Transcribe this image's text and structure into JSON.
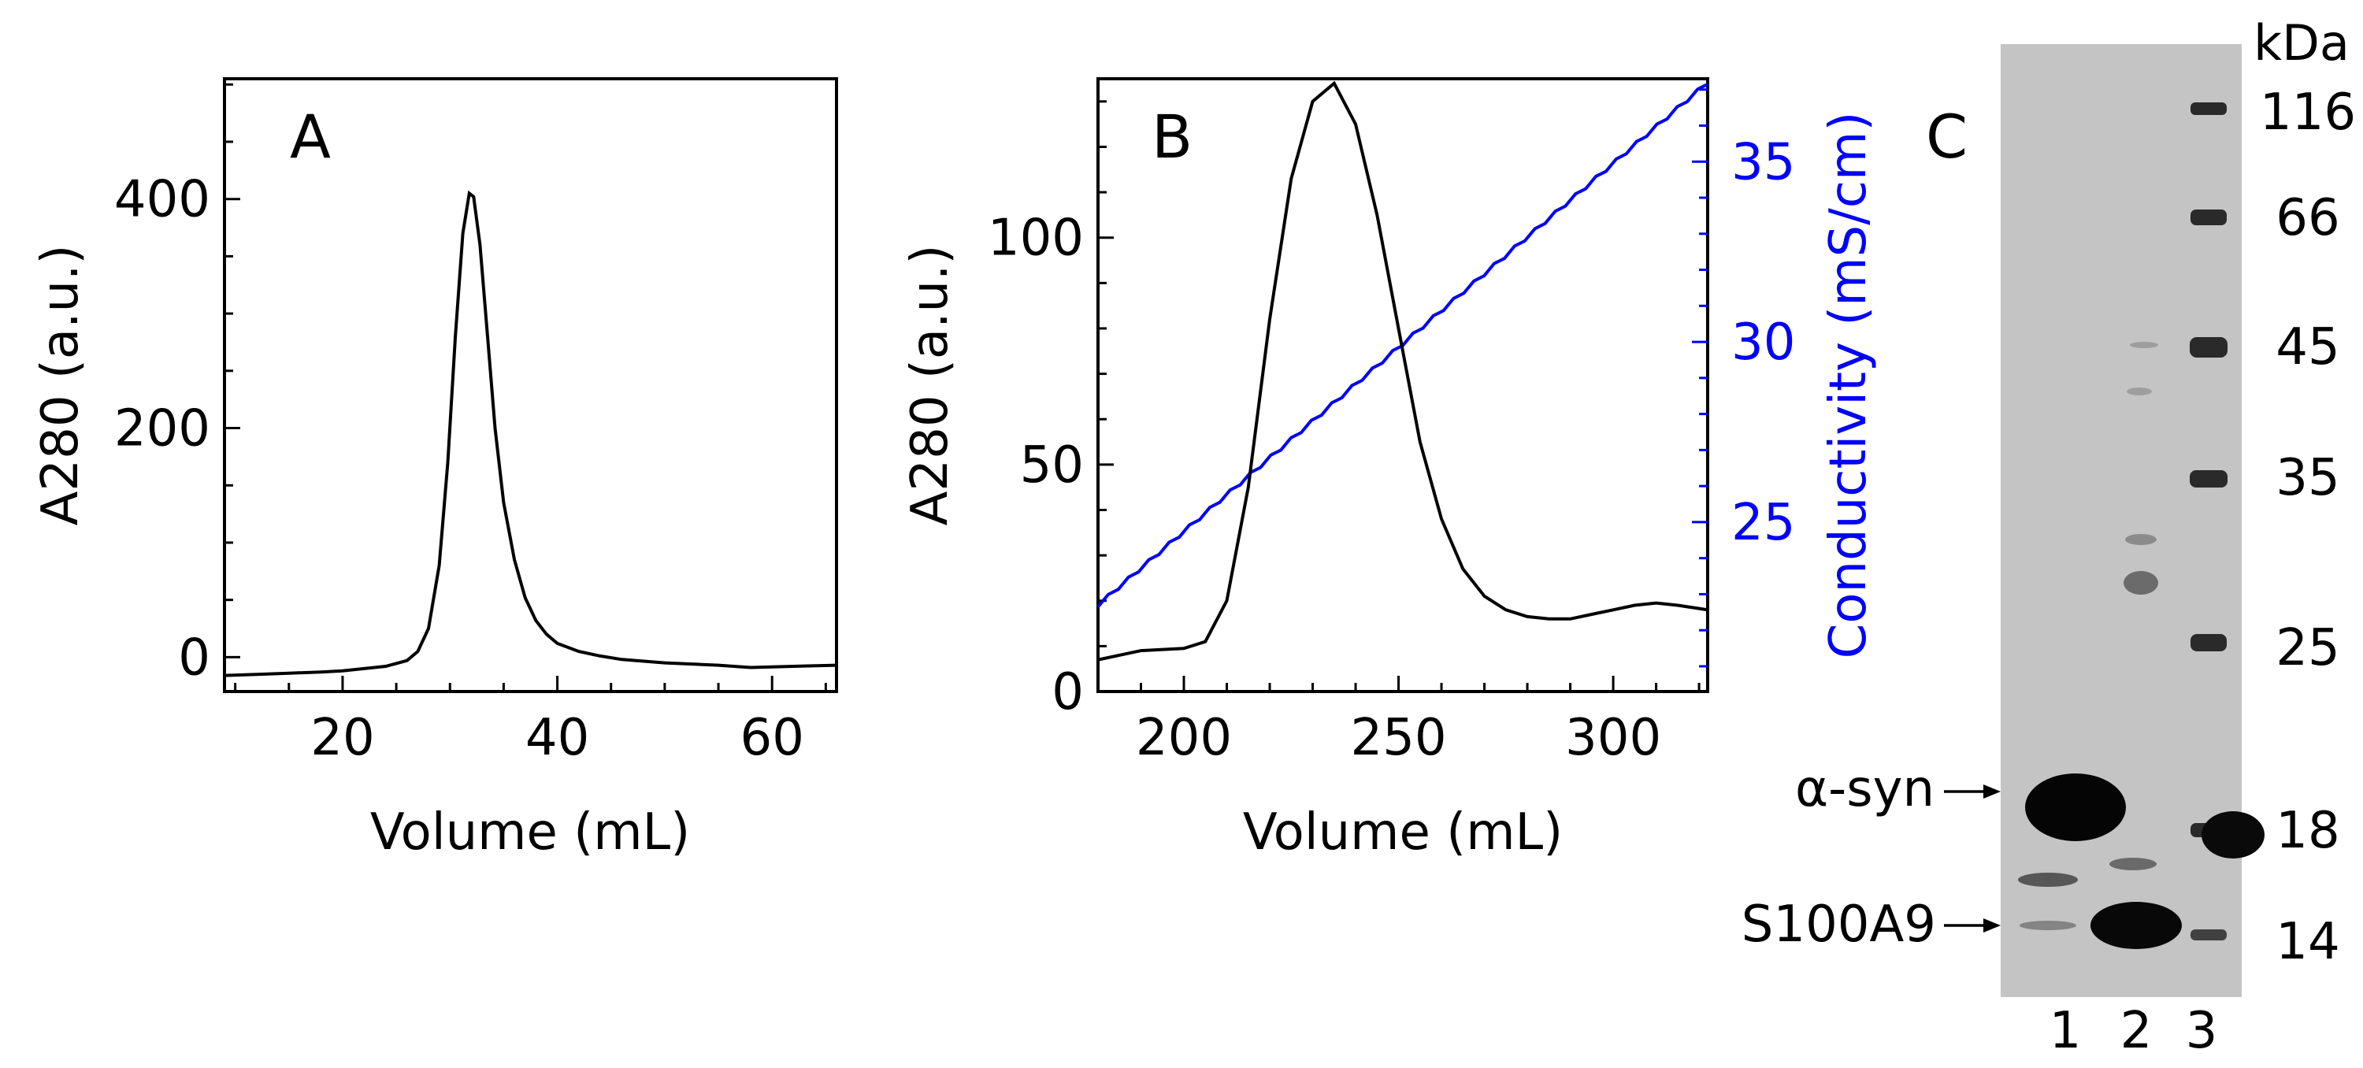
{
  "chart_data": [
    {
      "panel": "A",
      "type": "line",
      "xlabel": "Volume (mL)",
      "ylabel": "A280 (a.u.)",
      "xlim": [
        9,
        66
      ],
      "ylim": [
        -30,
        505
      ],
      "xticks": [
        20,
        40,
        60
      ],
      "yticks": [
        0,
        200,
        400
      ],
      "grid": false,
      "series": [
        {
          "name": "A280",
          "color": "#000000",
          "x": [
            9,
            12,
            15,
            18,
            20,
            22,
            24,
            26,
            27,
            28,
            29,
            29.8,
            30.5,
            31.2,
            31.8,
            32.2,
            32.8,
            33.5,
            34.2,
            35,
            36,
            37,
            38,
            39,
            40,
            42,
            44,
            46,
            50,
            55,
            58,
            62,
            66
          ],
          "y": [
            -16,
            -15,
            -14,
            -13,
            -12,
            -10,
            -8,
            -3,
            5,
            25,
            80,
            170,
            280,
            370,
            405,
            402,
            360,
            280,
            200,
            135,
            85,
            52,
            32,
            20,
            12,
            5,
            1,
            -2,
            -5,
            -7,
            -9,
            -8,
            -7
          ]
        }
      ]
    },
    {
      "panel": "B",
      "type": "line",
      "xlabel": "Volume (mL)",
      "ylabel": "A280 (a.u.)",
      "y2label": "Conductivity (mS/cm)",
      "xlim": [
        180,
        322
      ],
      "ylim": [
        0,
        135
      ],
      "y2lim": [
        20.3,
        37.3
      ],
      "xticks": [
        200,
        250,
        300
      ],
      "yticks": [
        0,
        50,
        100
      ],
      "y2ticks": [
        25,
        30,
        35
      ],
      "grid": false,
      "series": [
        {
          "name": "A280",
          "axis": "left",
          "color": "#000000",
          "x": [
            180,
            190,
            200,
            205,
            210,
            215,
            220,
            225,
            230,
            235,
            240,
            245,
            250,
            255,
            260,
            265,
            270,
            275,
            280,
            285,
            290,
            295,
            300,
            305,
            310,
            315,
            322
          ],
          "y": [
            7,
            9,
            9.5,
            11,
            20,
            45,
            82,
            113,
            130,
            134,
            125,
            105,
            80,
            55,
            38,
            27,
            21,
            18,
            16.5,
            16,
            16,
            17,
            18,
            19,
            19.5,
            19,
            18
          ]
        },
        {
          "name": "Conductivity",
          "axis": "right",
          "color": "#0000ff",
          "x": [
            180,
            322
          ],
          "y": [
            22.7,
            37.2
          ]
        }
      ]
    },
    {
      "panel": "C",
      "type": "gel",
      "unit_label": "kDa",
      "marker_labels": [
        "116",
        "66",
        "45",
        "35",
        "25",
        "18",
        "14"
      ],
      "lane_labels": [
        "1",
        "2",
        "3"
      ],
      "annotations": [
        "α-syn",
        "S100A9"
      ]
    }
  ]
}
